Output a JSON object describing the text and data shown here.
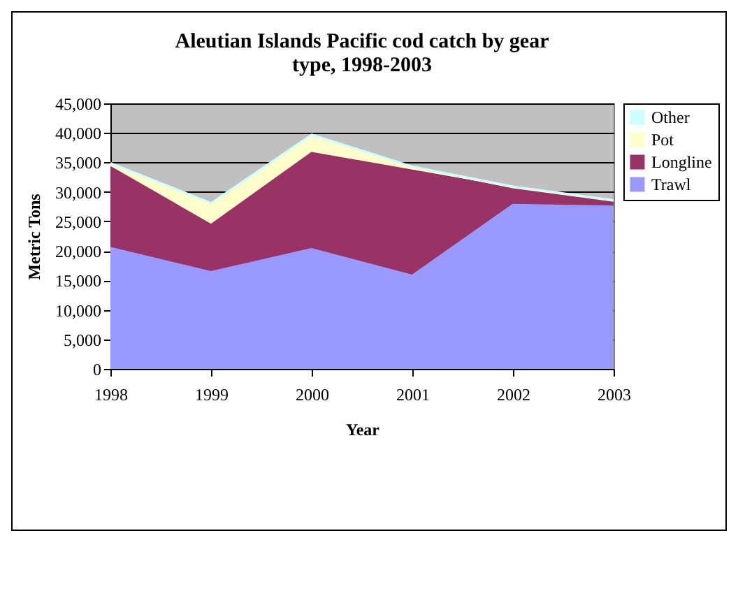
{
  "chart_data": {
    "type": "area",
    "title": "Aleutian Islands Pacific cod catch by gear type, 1998-2003",
    "xlabel": "Year",
    "ylabel": "Metric Tons",
    "categories": [
      "1998",
      "1999",
      "2000",
      "2001",
      "2002",
      "2003"
    ],
    "stacked": true,
    "series": [
      {
        "name": "Trawl",
        "color": "#9999ff",
        "values": [
          20500,
          16400,
          20300,
          15800,
          27800,
          27500
        ]
      },
      {
        "name": "Longline",
        "color": "#993366",
        "values": [
          13700,
          8000,
          16300,
          17800,
          2800,
          800
        ]
      },
      {
        "name": "Pot",
        "color": "#ffffcc",
        "values": [
          600,
          3600,
          3000,
          600,
          200,
          200
        ]
      },
      {
        "name": "Other",
        "color": "#ccffff",
        "values": [
          100,
          100,
          100,
          100,
          100,
          100
        ]
      }
    ],
    "ylim": [
      0,
      45000
    ],
    "yticks": [
      0,
      {
        "value": 5000,
        "label": "5,000"
      },
      {
        "value": 10000,
        "label": "10,000"
      },
      {
        "value": 15000,
        "label": "15,000"
      },
      {
        "value": 20000,
        "label": "20,000"
      },
      {
        "value": 25000,
        "label": "25,000"
      },
      {
        "value": 30000,
        "label": "30,000"
      },
      {
        "value": 35000,
        "label": "35,000"
      },
      {
        "value": 40000,
        "label": "40,000"
      },
      {
        "value": 45000,
        "label": "45,000"
      }
    ],
    "grid": "y",
    "legend": "right"
  }
}
